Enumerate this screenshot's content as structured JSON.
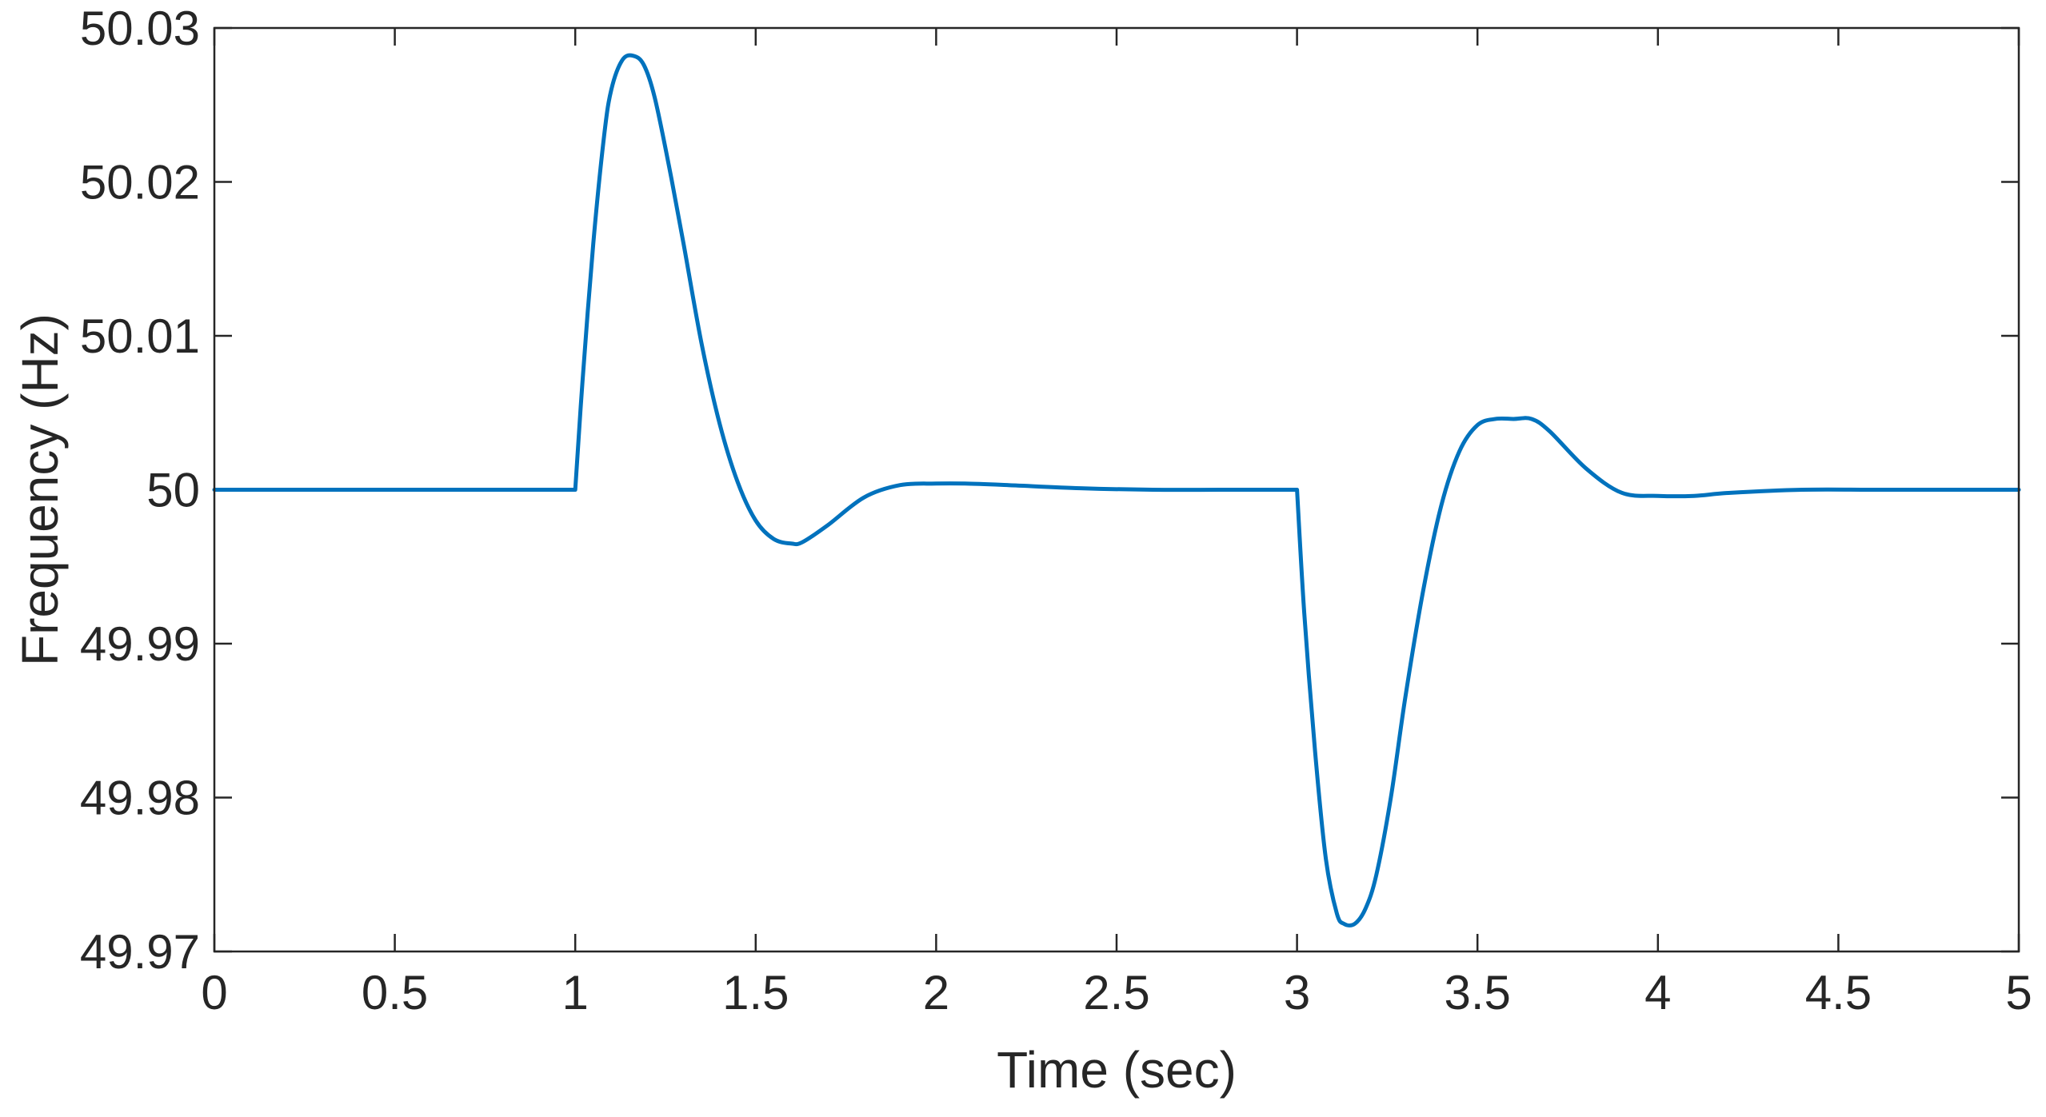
{
  "chart_data": {
    "type": "line",
    "title": "",
    "xlabel": "Time (sec)",
    "ylabel": "Frequency (Hz)",
    "xlim": [
      0,
      5
    ],
    "ylim": [
      49.97,
      50.03
    ],
    "xticks": [
      0,
      0.5,
      1,
      1.5,
      2,
      2.5,
      3,
      3.5,
      4,
      4.5,
      5
    ],
    "xtick_labels": [
      "0",
      "0.5",
      "1",
      "1.5",
      "2",
      "2.5",
      "3",
      "3.5",
      "4",
      "4.5",
      "5"
    ],
    "yticks": [
      49.97,
      49.98,
      49.99,
      50,
      50.01,
      50.02,
      50.03
    ],
    "ytick_labels": [
      "49.97",
      "49.98",
      "49.99",
      "50",
      "50.01",
      "50.02",
      "50.03"
    ],
    "grid": false,
    "box": true,
    "series": [
      {
        "color": "#0072BD",
        "x": [
          0,
          0.5,
          1.0,
          1.0,
          1.02,
          1.05,
          1.08,
          1.1,
          1.13,
          1.16,
          1.19,
          1.22,
          1.26,
          1.3,
          1.35,
          1.4,
          1.45,
          1.5,
          1.55,
          1.6,
          1.63,
          1.7,
          1.8,
          1.9,
          2.0,
          2.08,
          2.2,
          2.4,
          2.6,
          2.8,
          3.0,
          3.0,
          3.02,
          3.05,
          3.08,
          3.11,
          3.13,
          3.16,
          3.19,
          3.22,
          3.26,
          3.3,
          3.35,
          3.4,
          3.45,
          3.5,
          3.55,
          3.6,
          3.65,
          3.7,
          3.8,
          3.9,
          4.0,
          4.1,
          4.2,
          4.4,
          4.6,
          4.8,
          5.0
        ],
        "y": [
          50.0,
          50.0,
          50.0,
          50.0,
          50.007,
          50.016,
          50.023,
          50.026,
          50.0279,
          50.0282,
          50.0276,
          50.0255,
          50.021,
          50.016,
          50.0095,
          50.0043,
          50.0005,
          49.998,
          49.9968,
          49.9965,
          49.9966,
          49.9977,
          49.9995,
          50.0003,
          50.0004,
          50.0004,
          50.0003,
          50.0001,
          50.0,
          50.0,
          50.0,
          50.0,
          49.992,
          49.983,
          49.976,
          49.9725,
          49.9718,
          49.9718,
          49.9728,
          49.975,
          49.98,
          49.9865,
          49.9935,
          49.999,
          50.0025,
          50.0042,
          50.0046,
          50.0046,
          50.0046,
          50.0038,
          50.0014,
          49.9998,
          49.9996,
          49.9996,
          49.9998,
          50.0,
          50.0,
          50.0,
          50.0
        ]
      }
    ]
  }
}
